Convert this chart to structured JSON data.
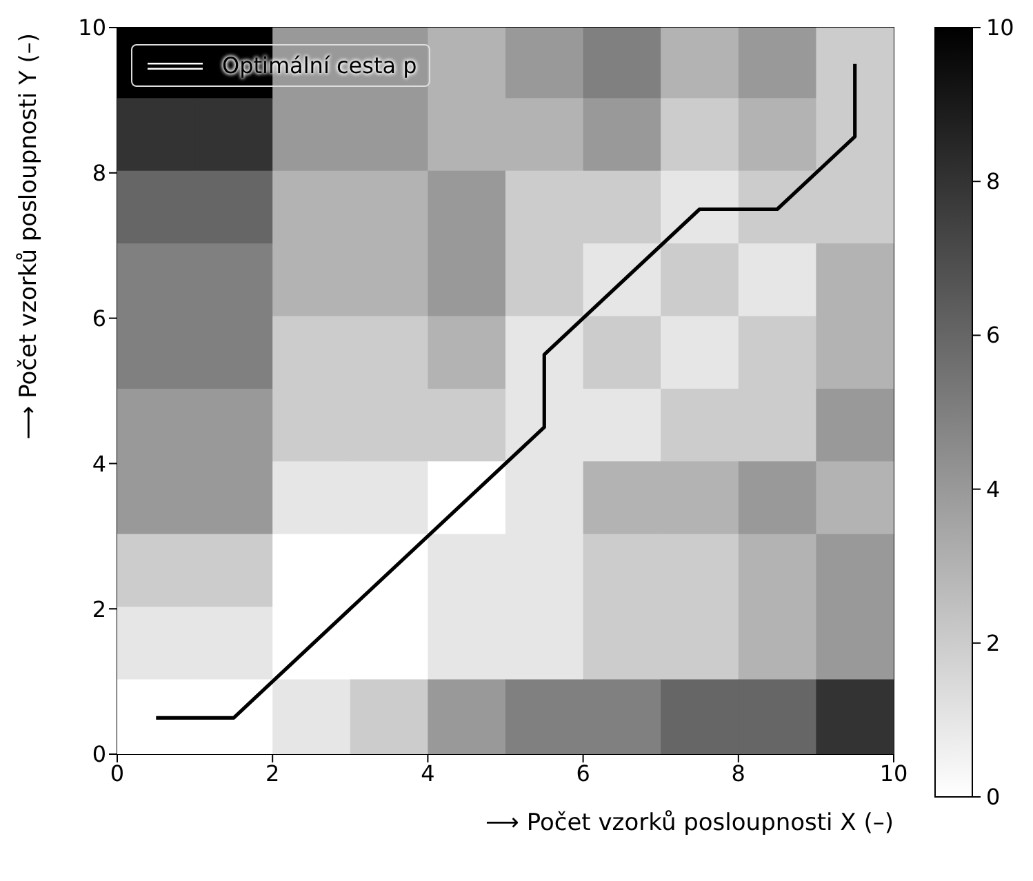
{
  "chart_data": {
    "type": "heatmap",
    "xlabel": "⟶ Počet vzorků posloupnosti X (–)",
    "ylabel": "⟶ Počet vzorků posloupnosti Y (–)",
    "xlim": [
      0,
      10
    ],
    "ylim": [
      0,
      10
    ],
    "xticks": [
      0,
      2,
      4,
      6,
      8,
      10
    ],
    "yticks": [
      0,
      2,
      4,
      6,
      8,
      10
    ],
    "clim": [
      0,
      10
    ],
    "cticks": [
      0,
      2,
      4,
      6,
      8,
      10
    ],
    "cells": [
      [
        10,
        10,
        4,
        4,
        3,
        4,
        5,
        3,
        4,
        2
      ],
      [
        8,
        8,
        4,
        4,
        3,
        3,
        4,
        2,
        3,
        2
      ],
      [
        6,
        6,
        3,
        3,
        4,
        2,
        2,
        1,
        2,
        2
      ],
      [
        5,
        5,
        3,
        3,
        4,
        2,
        1,
        2,
        1,
        3
      ],
      [
        5,
        5,
        2,
        2,
        3,
        1,
        2,
        1,
        2,
        3
      ],
      [
        4,
        4,
        2,
        2,
        2,
        1,
        1,
        2,
        2,
        4
      ],
      [
        4,
        4,
        1,
        1,
        0,
        1,
        3,
        3,
        4,
        3
      ],
      [
        2,
        2,
        0,
        0,
        1,
        1,
        2,
        2,
        3,
        4
      ],
      [
        1,
        1,
        0,
        0,
        1,
        1,
        2,
        2,
        3,
        4
      ],
      [
        0,
        0,
        1,
        2,
        4,
        5,
        5,
        6,
        6,
        8
      ]
    ],
    "series": [
      {
        "type": "line",
        "name": "Optimální cesta p",
        "color": "#000000",
        "x": [
          0.5,
          1.5,
          5.5,
          5.5,
          7.5,
          8.5,
          9.5,
          9.5
        ],
        "values": [
          0.5,
          0.5,
          4.5,
          5.5,
          7.5,
          7.5,
          8.5,
          9.5
        ]
      }
    ],
    "legend": "top left"
  }
}
